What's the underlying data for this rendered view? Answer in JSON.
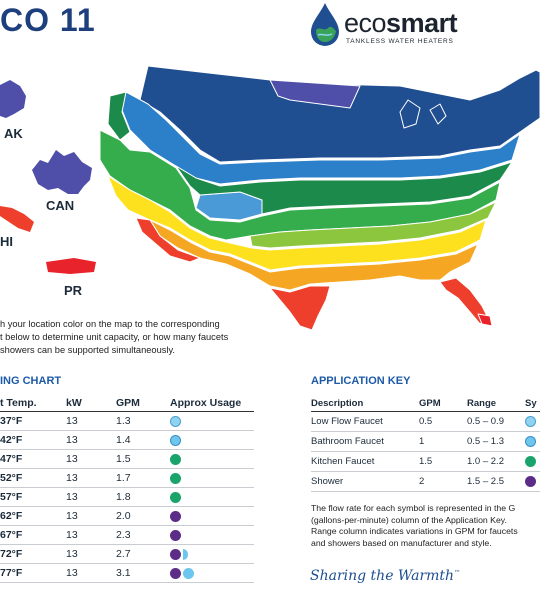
{
  "header": {
    "title": "CO 11"
  },
  "brand": {
    "name_light": "eco",
    "name_bold": "smart",
    "tagline": "TANKLESS WATER HEATERS"
  },
  "map": {
    "labels": {
      "ak": "AK",
      "can": "CAN",
      "hi": "HI",
      "pr": "PR"
    },
    "colors": {
      "navy": "#1f4e91",
      "blue": "#2c7fc9",
      "lightblue": "#4a9ad8",
      "purple": "#4f4ea8",
      "darkgreen": "#1c8a4a",
      "green": "#36ad4c",
      "lightgreen": "#8cc63f",
      "yellow": "#fde11e",
      "orange": "#f5a623",
      "red": "#ee3e2c",
      "darkred": "#e8232c"
    }
  },
  "instructions": [
    "h your location color on the map to the corresponding",
    "t below to determine unit capacity, or how many faucets",
    "showers can be supported simultaneously."
  ],
  "sizing_chart": {
    "title": "ING CHART",
    "headers": [
      "t Temp.",
      "kW",
      "GPM",
      "Approx Usage"
    ],
    "rows": [
      {
        "temp": "37°F",
        "kw": "13",
        "gpm": "1.3",
        "icons": [
          "lf"
        ]
      },
      {
        "temp": "42°F",
        "kw": "13",
        "gpm": "1.4",
        "icons": [
          "bf"
        ]
      },
      {
        "temp": "47°F",
        "kw": "13",
        "gpm": "1.5",
        "icons": [
          "kf"
        ]
      },
      {
        "temp": "52°F",
        "kw": "13",
        "gpm": "1.7",
        "icons": [
          "kf"
        ]
      },
      {
        "temp": "57°F",
        "kw": "13",
        "gpm": "1.8",
        "icons": [
          "kf"
        ]
      },
      {
        "temp": "62°F",
        "kw": "13",
        "gpm": "2.0",
        "icons": [
          "sh"
        ]
      },
      {
        "temp": "67°F",
        "kw": "13",
        "gpm": "2.3",
        "icons": [
          "sh"
        ]
      },
      {
        "temp": "72°F",
        "kw": "13",
        "gpm": "2.7",
        "icons": [
          "sh",
          "half"
        ]
      },
      {
        "temp": "77°F",
        "kw": "13",
        "gpm": "3.1",
        "icons": [
          "sh",
          "wave"
        ]
      }
    ]
  },
  "application_key": {
    "title": "APPLICATION KEY",
    "headers": [
      "Description",
      "GPM",
      "Range",
      "Sy"
    ],
    "rows": [
      {
        "desc": "Low Flow Faucet",
        "gpm": "0.5",
        "range": "0.5 – 0.9",
        "icon": "lf"
      },
      {
        "desc": "Bathroom Faucet",
        "gpm": "1",
        "range": "0.5 – 1.3",
        "icon": "bf"
      },
      {
        "desc": "Kitchen Faucet",
        "gpm": "1.5",
        "range": "1.0 – 2.2",
        "icon": "kf"
      },
      {
        "desc": "Shower",
        "gpm": "2",
        "range": "1.5 – 2.5",
        "icon": "sh"
      }
    ],
    "note": [
      "The flow rate for each symbol is represented in the G",
      "(gallons-per-minute) column of the Application Key.",
      "Range column indicates variations in GPM for faucets",
      "and showers based on manufacturer and style."
    ]
  },
  "slogan": "Sharing the Warmth",
  "slogan_mark": "™"
}
